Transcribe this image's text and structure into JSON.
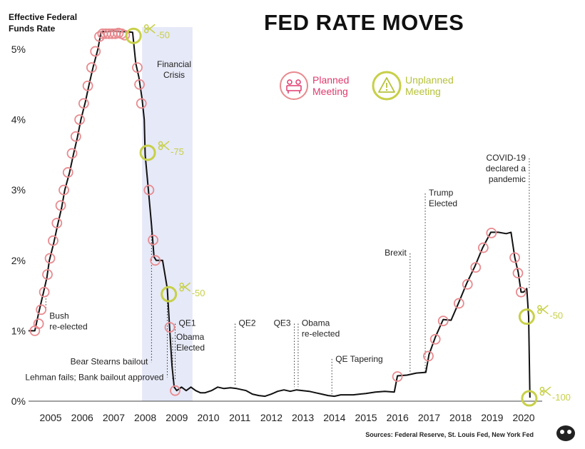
{
  "chart_data": {
    "type": "line",
    "title": "FED RATE MOVES",
    "ylabel": "Effective Federal Funds Rate",
    "ylim": [
      0,
      5.4
    ],
    "xlim": [
      2004.3,
      2020.5
    ],
    "yticks": [
      "0%",
      "1%",
      "2%",
      "3%",
      "4%",
      "5%"
    ],
    "ytick_values": [
      0,
      1,
      2,
      3,
      4,
      5
    ],
    "xticks": [
      "2005",
      "2006",
      "2007",
      "2008",
      "2009",
      "2010",
      "2011",
      "2012",
      "2013",
      "2014",
      "2015",
      "2016",
      "2017",
      "2018",
      "2019",
      "2020"
    ],
    "xtick_values": [
      2005,
      2006,
      2007,
      2008,
      2009,
      2010,
      2011,
      2012,
      2013,
      2014,
      2015,
      2016,
      2017,
      2018,
      2019,
      2020
    ],
    "grid": false,
    "series": [
      {
        "values": [
          [
            2004.3,
            1.0
          ],
          [
            2004.5,
            1.0
          ],
          [
            2004.62,
            1.25
          ],
          [
            2004.75,
            1.5
          ],
          [
            2004.88,
            1.75
          ],
          [
            2004.96,
            2.0
          ],
          [
            2005.1,
            2.25
          ],
          [
            2005.22,
            2.5
          ],
          [
            2005.35,
            2.75
          ],
          [
            2005.45,
            3.0
          ],
          [
            2005.6,
            3.25
          ],
          [
            2005.72,
            3.5
          ],
          [
            2005.85,
            3.75
          ],
          [
            2005.96,
            4.0
          ],
          [
            2006.1,
            4.25
          ],
          [
            2006.22,
            4.5
          ],
          [
            2006.35,
            4.75
          ],
          [
            2006.5,
            5.0
          ],
          [
            2006.6,
            5.25
          ],
          [
            2006.8,
            5.25
          ],
          [
            2007.0,
            5.26
          ],
          [
            2007.2,
            5.25
          ],
          [
            2007.4,
            5.25
          ],
          [
            2007.6,
            5.24
          ],
          [
            2007.7,
            4.8
          ],
          [
            2007.8,
            4.6
          ],
          [
            2007.9,
            4.3
          ],
          [
            2007.97,
            4.0
          ],
          [
            2008.0,
            3.5
          ],
          [
            2008.1,
            3.0
          ],
          [
            2008.2,
            2.5
          ],
          [
            2008.28,
            2.05
          ],
          [
            2008.35,
            2.0
          ],
          [
            2008.55,
            2.0
          ],
          [
            2008.7,
            1.6
          ],
          [
            2008.78,
            1.0
          ],
          [
            2008.85,
            0.5
          ],
          [
            2008.92,
            0.2
          ],
          [
            2009.0,
            0.15
          ],
          [
            2009.15,
            0.2
          ],
          [
            2009.3,
            0.15
          ],
          [
            2009.45,
            0.2
          ],
          [
            2009.6,
            0.15
          ],
          [
            2009.75,
            0.12
          ],
          [
            2009.9,
            0.12
          ],
          [
            2010.1,
            0.15
          ],
          [
            2010.3,
            0.2
          ],
          [
            2010.5,
            0.18
          ],
          [
            2010.7,
            0.19
          ],
          [
            2010.9,
            0.18
          ],
          [
            2011.2,
            0.15
          ],
          [
            2011.4,
            0.1
          ],
          [
            2011.6,
            0.08
          ],
          [
            2011.8,
            0.07
          ],
          [
            2012.0,
            0.1
          ],
          [
            2012.2,
            0.14
          ],
          [
            2012.4,
            0.16
          ],
          [
            2012.6,
            0.14
          ],
          [
            2012.8,
            0.16
          ],
          [
            2013.0,
            0.15
          ],
          [
            2013.2,
            0.14
          ],
          [
            2013.4,
            0.12
          ],
          [
            2013.6,
            0.1
          ],
          [
            2013.8,
            0.08
          ],
          [
            2014.0,
            0.07
          ],
          [
            2014.2,
            0.09
          ],
          [
            2014.4,
            0.09
          ],
          [
            2014.6,
            0.09
          ],
          [
            2014.8,
            0.1
          ],
          [
            2015.0,
            0.11
          ],
          [
            2015.3,
            0.13
          ],
          [
            2015.6,
            0.14
          ],
          [
            2015.9,
            0.13
          ],
          [
            2016.0,
            0.36
          ],
          [
            2016.3,
            0.37
          ],
          [
            2016.6,
            0.4
          ],
          [
            2016.9,
            0.41
          ],
          [
            2017.0,
            0.66
          ],
          [
            2017.2,
            0.91
          ],
          [
            2017.45,
            1.16
          ],
          [
            2017.7,
            1.15
          ],
          [
            2017.96,
            1.42
          ],
          [
            2018.2,
            1.68
          ],
          [
            2018.45,
            1.91
          ],
          [
            2018.7,
            2.18
          ],
          [
            2018.96,
            2.4
          ],
          [
            2019.2,
            2.4
          ],
          [
            2019.45,
            2.38
          ],
          [
            2019.6,
            2.4
          ],
          [
            2019.72,
            2.04
          ],
          [
            2019.83,
            1.83
          ],
          [
            2019.92,
            1.55
          ],
          [
            2020.0,
            1.55
          ],
          [
            2020.1,
            1.6
          ],
          [
            2020.16,
            1.2
          ],
          [
            2020.2,
            0.05
          ]
        ]
      }
    ],
    "legend": {
      "placement": "top-right",
      "entries": [
        "Planned Meeting",
        "Unplanned Meeting"
      ]
    },
    "shaded_periods": [
      {
        "label": "Financial Crisis",
        "x_start": 2007.9,
        "x_end": 2009.5
      }
    ],
    "planned_meetings": [
      [
        2004.5,
        1.0
      ],
      [
        2004.62,
        1.1
      ],
      [
        2004.7,
        1.3
      ],
      [
        2004.8,
        1.55
      ],
      [
        2004.9,
        1.8
      ],
      [
        2004.98,
        2.03
      ],
      [
        2005.08,
        2.28
      ],
      [
        2005.2,
        2.53
      ],
      [
        2005.32,
        2.78
      ],
      [
        2005.42,
        3.0
      ],
      [
        2005.55,
        3.25
      ],
      [
        2005.68,
        3.52
      ],
      [
        2005.8,
        3.76
      ],
      [
        2005.92,
        4.0
      ],
      [
        2006.05,
        4.23
      ],
      [
        2006.18,
        4.48
      ],
      [
        2006.3,
        4.74
      ],
      [
        2006.42,
        4.97
      ],
      [
        2006.55,
        5.18
      ],
      [
        2006.65,
        5.22
      ],
      [
        2006.75,
        5.22
      ],
      [
        2006.85,
        5.22
      ],
      [
        2006.95,
        5.22
      ],
      [
        2007.05,
        5.22
      ],
      [
        2007.15,
        5.23
      ],
      [
        2007.25,
        5.22
      ],
      [
        2007.35,
        5.2
      ],
      [
        2007.75,
        4.74
      ],
      [
        2007.82,
        4.5
      ],
      [
        2007.88,
        4.23
      ],
      [
        2008.12,
        3.0
      ],
      [
        2008.25,
        2.29
      ],
      [
        2008.32,
        2.0
      ],
      [
        2008.78,
        1.05
      ],
      [
        2008.95,
        0.15
      ],
      [
        2016.0,
        0.35
      ],
      [
        2016.98,
        0.64
      ],
      [
        2017.2,
        0.88
      ],
      [
        2017.45,
        1.14
      ],
      [
        2017.95,
        1.39
      ],
      [
        2018.22,
        1.66
      ],
      [
        2018.48,
        1.9
      ],
      [
        2018.72,
        2.18
      ],
      [
        2018.98,
        2.39
      ],
      [
        2019.72,
        2.04
      ],
      [
        2019.82,
        1.82
      ],
      [
        2019.92,
        1.55
      ]
    ],
    "unplanned_meetings": [
      {
        "x": 2007.63,
        "y": 5.19,
        "label": "-50"
      },
      {
        "x": 2008.08,
        "y": 3.53,
        "label": "-75"
      },
      {
        "x": 2008.75,
        "y": 1.52,
        "label": "-50"
      },
      {
        "x": 2020.1,
        "y": 1.2,
        "label": "-50"
      },
      {
        "x": 2020.18,
        "y": 0.04,
        "label": "-100"
      }
    ],
    "annotations": [
      {
        "lines": [
          "Bush",
          "re-elected"
        ],
        "x": 2004.85,
        "side": "right",
        "y_top": 1.5,
        "y_bottom": 1.3,
        "label_y": 1.17
      },
      {
        "lines": [
          "Bear Stearns bailout"
        ],
        "x": 2008.2,
        "side": "left",
        "y_top": 2.5,
        "y_bottom": 0.55,
        "label_y": 0.52
      },
      {
        "lines": [
          "Lehman fails; Bank bailout approved"
        ],
        "x": 2008.7,
        "side": "left",
        "y_top": 1.4,
        "y_bottom": 0.34,
        "label_y": 0.3
      },
      {
        "lines": [
          "QE1"
        ],
        "x": 2008.95,
        "side": "right",
        "y_top": 1.1,
        "y_bottom": 0.3,
        "label_y": 1.07
      },
      {
        "lines": [
          "Obama",
          "Elected"
        ],
        "x": 2008.87,
        "side": "right",
        "y_top": 0.9,
        "y_bottom": 0.3,
        "label_y": 0.87
      },
      {
        "lines": [
          "QE2"
        ],
        "x": 2010.85,
        "side": "right",
        "y_top": 1.1,
        "y_bottom": 0.22,
        "label_y": 1.07
      },
      {
        "lines": [
          "QE3"
        ],
        "x": 2012.73,
        "side": "left",
        "y_top": 1.1,
        "y_bottom": 0.2,
        "label_y": 1.07
      },
      {
        "lines": [
          "Obama",
          "re-elected"
        ],
        "x": 2012.85,
        "side": "right",
        "y_top": 1.1,
        "y_bottom": 0.2,
        "label_y": 1.07
      },
      {
        "lines": [
          "QE Tapering"
        ],
        "x": 2013.92,
        "side": "right",
        "y_top": 0.6,
        "y_bottom": 0.1,
        "label_y": 0.56
      },
      {
        "lines": [
          "Brexit"
        ],
        "x": 2016.4,
        "side": "left",
        "y_top": 2.1,
        "y_bottom": 0.4,
        "label_y": 2.07
      },
      {
        "lines": [
          "Trump",
          "Elected"
        ],
        "x": 2016.88,
        "side": "right",
        "y_top": 2.95,
        "y_bottom": 0.42,
        "label_y": 2.92
      },
      {
        "lines": [
          "COVID-19",
          "declared a",
          "pandemic"
        ],
        "x": 2020.18,
        "side": "left",
        "y_top": 3.45,
        "y_bottom": 1.6,
        "label_y": 3.42
      }
    ],
    "colors": {
      "line": "#111111",
      "planned": "#e88a8f",
      "unplanned": "#c7d048",
      "shade": "#e6e9f7",
      "legend_planned_text": "#e03a6e",
      "legend_unplanned_text": "#b6c23a"
    }
  },
  "header": {
    "ylabel_line1": "Effective Federal",
    "ylabel_line2": "Funds Rate",
    "title": "FED RATE MOVES"
  },
  "legend": {
    "planned_label": "Planned Meeting",
    "unplanned_label": "Unplanned Meeting"
  },
  "footer": {
    "source": "Sources: Federal Reserve, St. Louis Fed, New York Fed"
  }
}
